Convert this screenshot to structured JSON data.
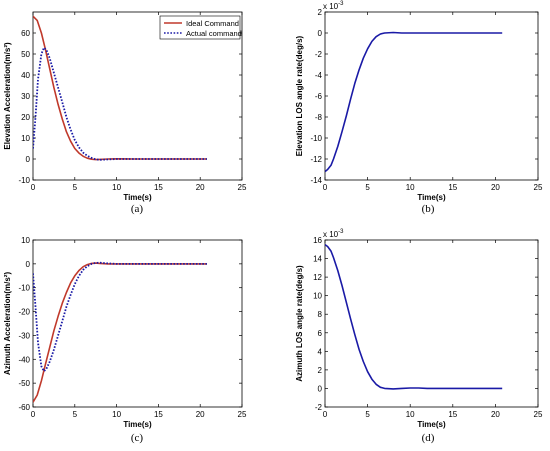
{
  "chart_data": [
    {
      "panel": "a",
      "caption": "(a)",
      "type": "line",
      "xlabel": "Time(s)",
      "ylabel": "Elevation Acceleration(m/s²)",
      "xlim": [
        0,
        25
      ],
      "ylim": [
        -10,
        70
      ],
      "xticks": [
        0,
        5,
        10,
        15,
        20,
        25
      ],
      "yticks": [
        -10,
        0,
        10,
        20,
        30,
        40,
        50,
        60
      ],
      "legend": {
        "position": "top-right",
        "entries": [
          "Ideal Command",
          "Actual command"
        ]
      },
      "series": [
        {
          "name": "Ideal Command",
          "color": "#c0392b",
          "style": "solid",
          "x": [
            0,
            0.5,
            1,
            1.5,
            2,
            2.5,
            3,
            3.5,
            4,
            4.5,
            5,
            5.5,
            6,
            6.5,
            7,
            7.5,
            8,
            9,
            10,
            12,
            15,
            18,
            20.8
          ],
          "y": [
            68,
            66,
            60,
            52,
            43,
            34,
            26,
            19,
            13,
            8.5,
            5,
            2.8,
            1.3,
            0.4,
            -0.1,
            -0.3,
            -0.2,
            0,
            0.1,
            0,
            0,
            0,
            0
          ]
        },
        {
          "name": "Actual command",
          "color": "#1a1aa6",
          "style": "dotted",
          "x": [
            0,
            0.3,
            0.6,
            1,
            1.3,
            1.6,
            2,
            2.5,
            3,
            3.5,
            4,
            4.5,
            5,
            5.5,
            6,
            6.5,
            7,
            7.5,
            8,
            9,
            10,
            12,
            15,
            18,
            20.8
          ],
          "y": [
            5,
            20,
            38,
            50,
            53,
            52,
            48,
            41,
            34,
            27,
            20,
            14,
            9,
            5.5,
            3,
            1.5,
            0.5,
            -0.2,
            -0.4,
            -0.2,
            0,
            0,
            0,
            0,
            0
          ]
        }
      ]
    },
    {
      "panel": "b",
      "caption": "(b)",
      "type": "line",
      "xlabel": "Time(s)",
      "ylabel": "Elevation LOS angle rate(deg/s)",
      "xlim": [
        0,
        25
      ],
      "ylim": [
        -14,
        2
      ],
      "xticks": [
        0,
        5,
        10,
        15,
        20,
        25
      ],
      "yticks": [
        -14,
        -12,
        -10,
        -8,
        -6,
        -4,
        -2,
        0,
        2
      ],
      "multiplier": "x 10",
      "exponent": "-3",
      "series": [
        {
          "color": "#1a1aa6",
          "style": "solid",
          "x": [
            0,
            0.3,
            0.7,
            1,
            1.5,
            2,
            2.5,
            3,
            3.5,
            4,
            4.5,
            5,
            5.5,
            6,
            6.5,
            7,
            8,
            9,
            10,
            12,
            15,
            18,
            20.8
          ],
          "y": [
            -13.2,
            -13,
            -12.6,
            -12,
            -10.8,
            -9.4,
            -7.9,
            -6.3,
            -4.8,
            -3.5,
            -2.4,
            -1.5,
            -0.8,
            -0.35,
            -0.1,
            0,
            0.05,
            0,
            0,
            0,
            0,
            0,
            0
          ]
        }
      ]
    },
    {
      "panel": "c",
      "caption": "(c)",
      "type": "line",
      "xlabel": "Time(s)",
      "ylabel": "Azimuth Acceleration(m/s²)",
      "xlim": [
        0,
        25
      ],
      "ylim": [
        -60,
        10
      ],
      "xticks": [
        0,
        5,
        10,
        15,
        20,
        25
      ],
      "yticks": [
        -60,
        -50,
        -40,
        -30,
        -20,
        -10,
        0,
        10
      ],
      "series": [
        {
          "name": "Ideal Command",
          "color": "#c0392b",
          "style": "solid",
          "x": [
            0,
            0.5,
            1,
            1.5,
            2,
            2.5,
            3,
            3.5,
            4,
            4.5,
            5,
            5.5,
            6,
            6.5,
            7,
            7.5,
            8,
            9,
            10,
            12,
            15,
            18,
            20.8
          ],
          "y": [
            -58,
            -55,
            -49,
            -42,
            -35,
            -28,
            -22,
            -16.5,
            -12,
            -8,
            -5,
            -2.8,
            -1.2,
            -0.3,
            0.2,
            0.3,
            0.2,
            0,
            0,
            0,
            0,
            0,
            0
          ]
        },
        {
          "name": "Actual command",
          "color": "#1a1aa6",
          "style": "dotted",
          "x": [
            0,
            0.3,
            0.6,
            1,
            1.3,
            1.6,
            2,
            2.5,
            3,
            3.5,
            4,
            4.5,
            5,
            5.5,
            6,
            6.5,
            7,
            7.5,
            8,
            9,
            10,
            12,
            15,
            18,
            20.8
          ],
          "y": [
            -4,
            -18,
            -33,
            -43,
            -45,
            -44,
            -41,
            -36,
            -30,
            -24,
            -18,
            -13,
            -8.5,
            -5,
            -2.5,
            -1,
            0,
            0.4,
            0.5,
            0.2,
            0,
            0,
            0,
            0,
            0
          ]
        }
      ]
    },
    {
      "panel": "d",
      "caption": "(d)",
      "type": "line",
      "xlabel": "Time(s)",
      "ylabel": "Azimuth LOS angle rate(deg/s)",
      "xlim": [
        0,
        25
      ],
      "ylim": [
        -2,
        16
      ],
      "xticks": [
        0,
        5,
        10,
        15,
        20,
        25
      ],
      "yticks": [
        -2,
        0,
        2,
        4,
        6,
        8,
        10,
        12,
        14,
        16
      ],
      "multiplier": "x 10",
      "exponent": "-3",
      "series": [
        {
          "color": "#1a1aa6",
          "style": "solid",
          "x": [
            0,
            0.3,
            0.7,
            1,
            1.5,
            2,
            2.5,
            3,
            3.5,
            4,
            4.5,
            5,
            5.5,
            6,
            6.5,
            7,
            8,
            9,
            10,
            11,
            12,
            15,
            18,
            20.8
          ],
          "y": [
            15.5,
            15.3,
            14.8,
            14.1,
            12.7,
            11.1,
            9.3,
            7.5,
            5.8,
            4.2,
            2.9,
            1.8,
            1.0,
            0.45,
            0.12,
            0,
            -0.05,
            0,
            0.05,
            0.05,
            0,
            0,
            0,
            0
          ]
        }
      ]
    }
  ]
}
